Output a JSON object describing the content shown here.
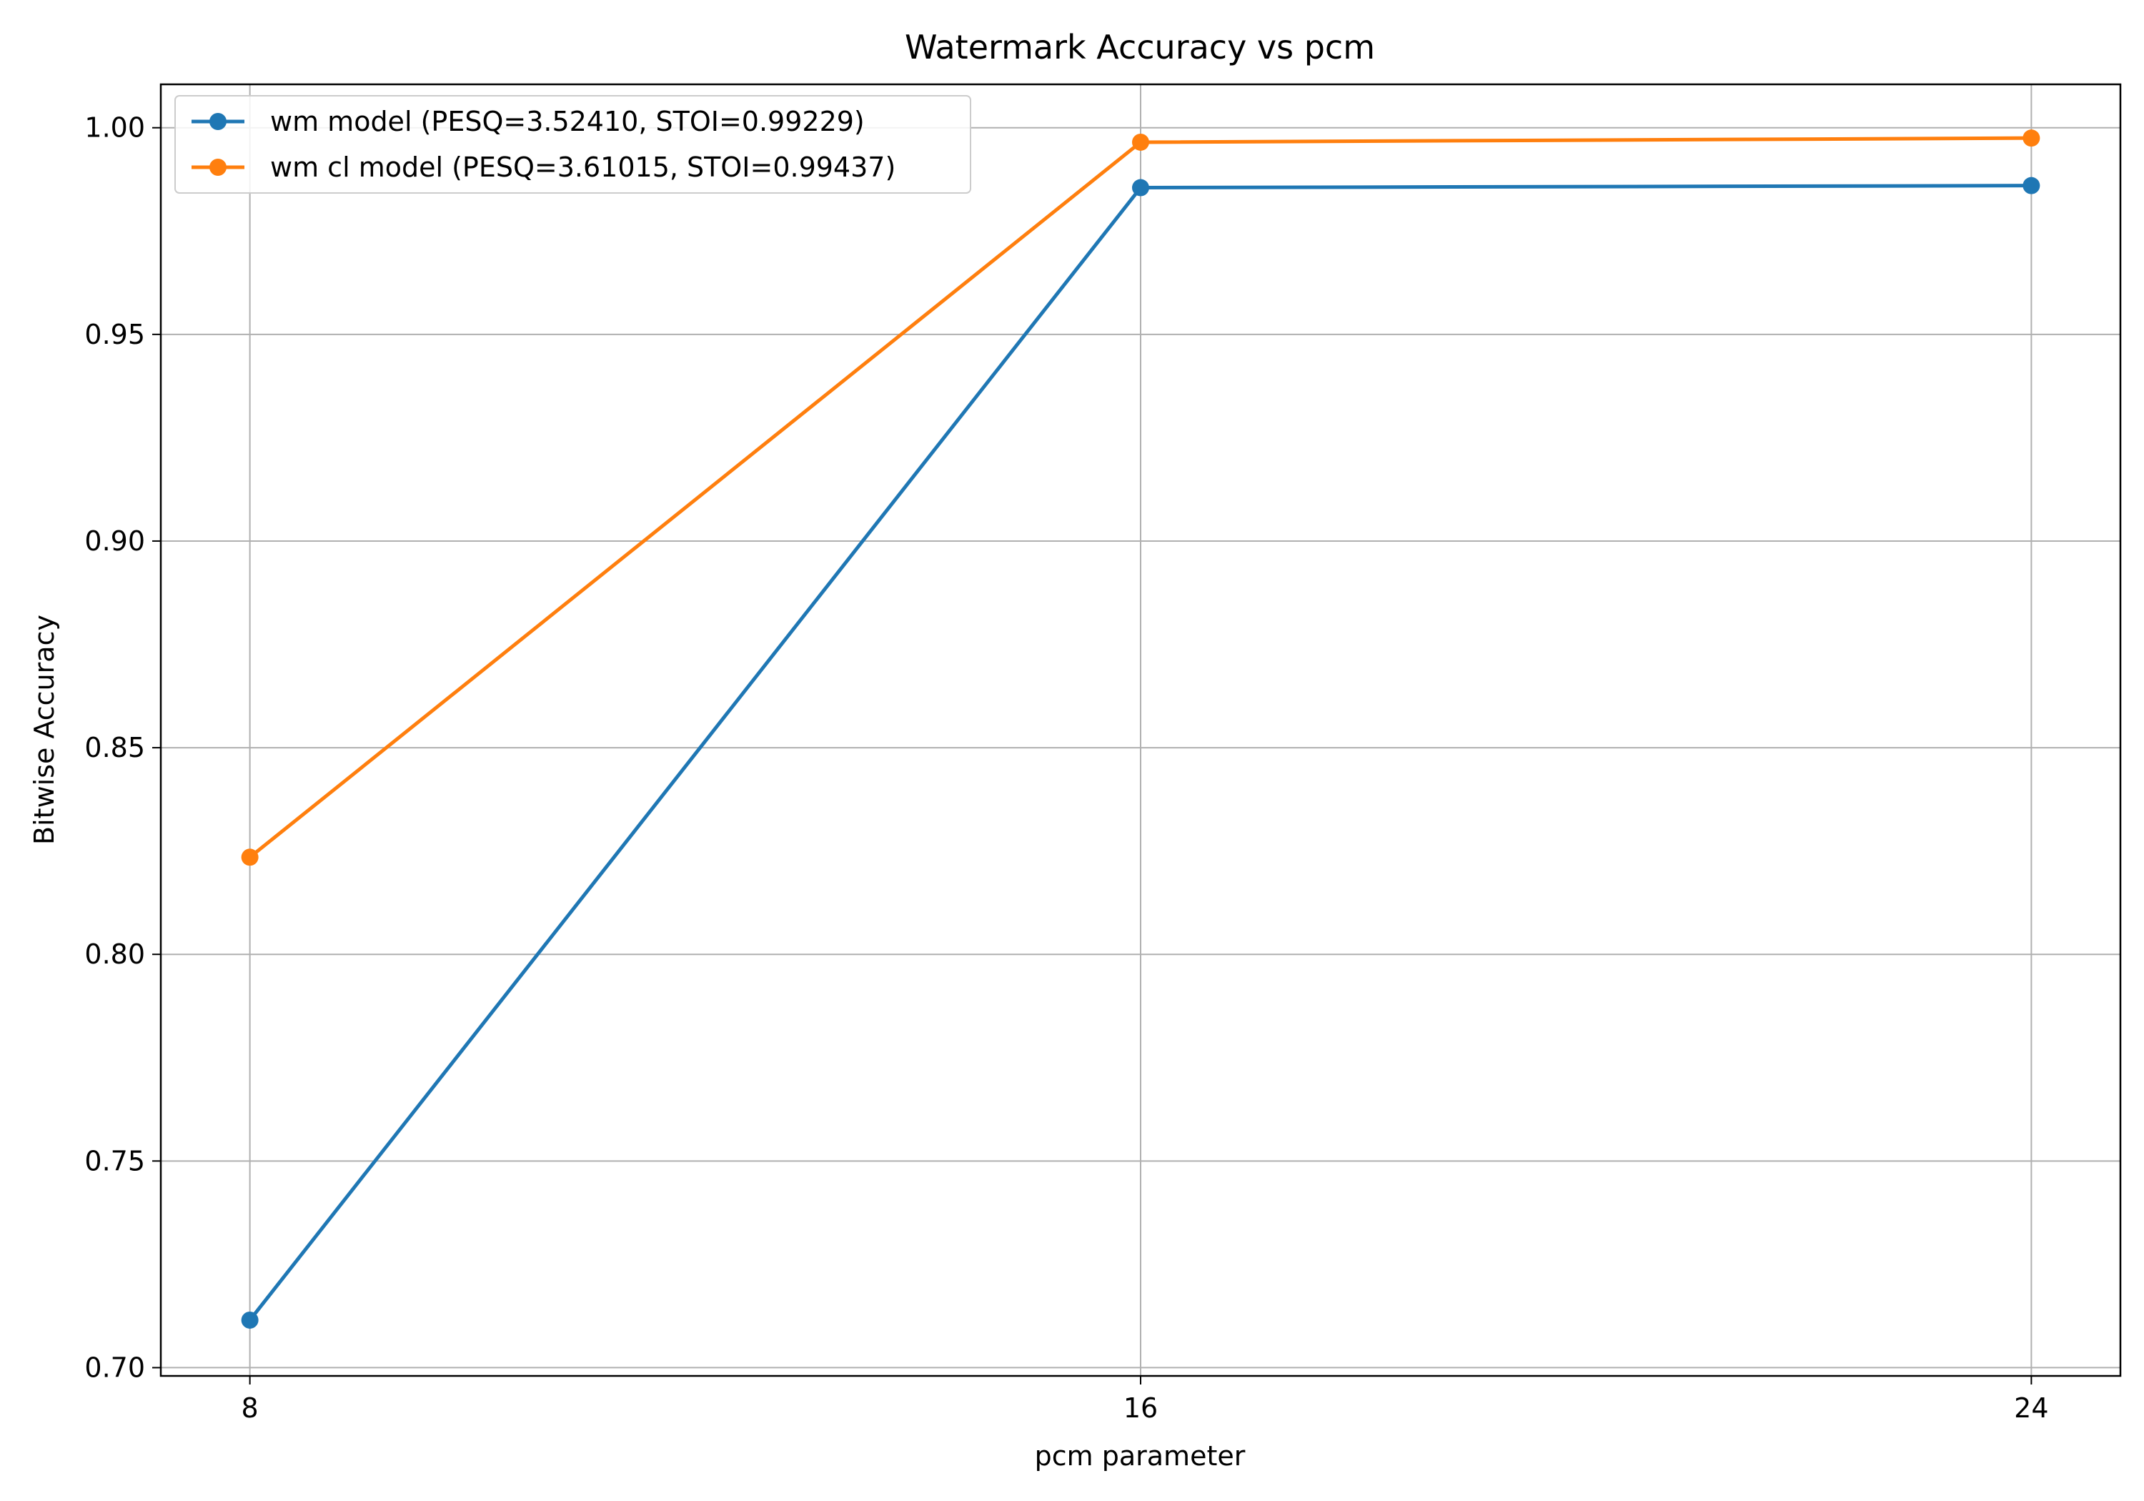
{
  "chart_data": {
    "type": "line",
    "title": "Watermark Accuracy vs pcm",
    "xlabel": "pcm parameter",
    "ylabel": "Bitwise Accuracy",
    "x": [
      8,
      16,
      24
    ],
    "xlim": [
      7.2,
      24.8
    ],
    "ylim": [
      0.698,
      1.0105
    ],
    "yticks": [
      0.7,
      0.75,
      0.8,
      0.85,
      0.9,
      0.95,
      1.0
    ],
    "ytick_labels": [
      "0.70",
      "0.75",
      "0.80",
      "0.85",
      "0.90",
      "0.95",
      "1.00"
    ],
    "xtick_labels": [
      "8",
      "16",
      "24"
    ],
    "grid": true,
    "legend_position": "upper-left",
    "series": [
      {
        "name": "wm model (PESQ=3.52410, STOI=0.99229)",
        "color": "#1f77b4",
        "values": [
          0.7115,
          0.9855,
          0.986
        ]
      },
      {
        "name": "wm cl model (PESQ=3.61015, STOI=0.99437)",
        "color": "#ff7f0e",
        "values": [
          0.8235,
          0.9965,
          0.9975
        ]
      }
    ]
  }
}
